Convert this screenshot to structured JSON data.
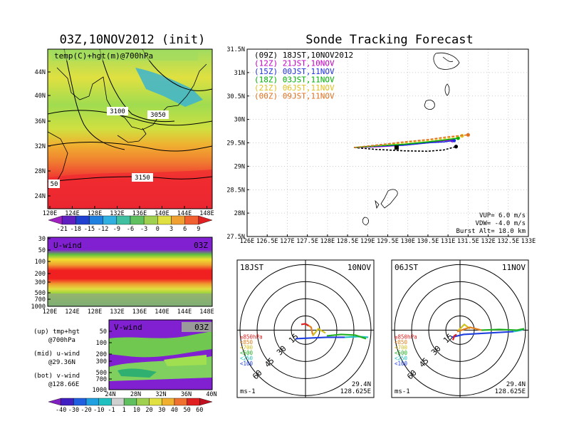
{
  "left_title": "03Z,10NOV2012 (init)",
  "right_title": "Sonde Tracking Forecast",
  "map_panel": {
    "label": "temp(C)+hgt(m)@700hPa",
    "yticks": [
      "44N",
      "40N",
      "36N",
      "32N",
      "28N",
      "24N"
    ],
    "xticks": [
      "120E",
      "124E",
      "128E",
      "132E",
      "136E",
      "140E",
      "144E",
      "148E"
    ],
    "contour_labels": [
      "3100",
      "3050",
      "3150",
      "50"
    ],
    "colorbar": [
      "-21",
      "-18",
      "-15",
      "-12",
      "-9",
      "-6",
      "-3",
      "0",
      "3",
      "6",
      "9"
    ]
  },
  "u_panel": {
    "label": "U-wind",
    "time": "03Z",
    "yticks": [
      "30",
      "50",
      "100",
      "200",
      "300",
      "500",
      "700",
      "1000"
    ],
    "xticks": [
      "120E",
      "124E",
      "128E",
      "132E",
      "136E",
      "140E",
      "144E",
      "148E"
    ]
  },
  "v_panel": {
    "label": "V-wind",
    "time": "03Z",
    "yticks": [
      "50",
      "100",
      "200",
      "300",
      "500",
      "700",
      "1000"
    ],
    "xticks": [
      "24N",
      "28N",
      "32N",
      "36N",
      "40N"
    ],
    "colorbar": [
      "-40",
      "-30",
      "-20",
      "-10",
      "-1",
      "1",
      "10",
      "20",
      "30",
      "40",
      "50",
      "60"
    ]
  },
  "side_notes": [
    [
      "(up) tmp+hgt",
      "@700hPa"
    ],
    [
      "(mid) u-wind",
      "@29.36N"
    ],
    [
      "(bot) v-wind",
      "@128.66E"
    ]
  ],
  "track_panel": {
    "legend": [
      {
        "text": "(09Z) 18JST,10NOV2012",
        "color": "#000000"
      },
      {
        "text": "(12Z) 21JST,10NOV",
        "color": "#c000c0"
      },
      {
        "text": "(15Z) 00JST,11NOV",
        "color": "#2030e0"
      },
      {
        "text": "(18Z) 03JST,11NOV",
        "color": "#00b000"
      },
      {
        "text": "(21Z) 06JST,11NOV",
        "color": "#e0c020"
      },
      {
        "text": "(00Z) 09JST,11NOV",
        "color": "#e07020"
      }
    ],
    "yticks": [
      "31.5N",
      "31N",
      "30.5N",
      "30N",
      "29.5N",
      "29N",
      "28.5N",
      "28N",
      "27.5N"
    ],
    "xticks": [
      "126E",
      "126.5E",
      "127E",
      "127.5E",
      "128E",
      "128.5E",
      "129E",
      "129.5E",
      "130E",
      "130.5E",
      "131E",
      "131.5E",
      "132E",
      "132.5E",
      "133E"
    ],
    "params": [
      "VUP= 6.0 m/s",
      "VDW= -4.0 m/s",
      "Burst Alt= 18.0 km"
    ]
  },
  "chart_data": {
    "type": "line",
    "title": "Sonde Tracking Forecast",
    "xlim": [
      126,
      133
    ],
    "ylim": [
      27.5,
      31.5
    ],
    "grid": true,
    "series": [
      {
        "name": "(09Z) 18JST,10NOV2012",
        "color": "#000000",
        "x": [
          128.66,
          129.2,
          129.9,
          130.5,
          130.9,
          131.2
        ],
        "y": [
          29.4,
          29.36,
          29.33,
          29.32,
          29.35,
          29.42
        ]
      },
      {
        "name": "(12Z) 21JST,10NOV",
        "color": "#c000c0",
        "x": [
          128.66,
          129.3,
          129.9,
          130.5,
          130.9,
          131.1
        ],
        "y": [
          29.4,
          29.42,
          29.45,
          29.5,
          29.55,
          29.55
        ]
      },
      {
        "name": "(15Z) 00JST,11NOV",
        "color": "#2030e0",
        "x": [
          128.66,
          129.3,
          129.9,
          130.5,
          130.9,
          131.15
        ],
        "y": [
          29.4,
          29.43,
          29.45,
          29.5,
          29.52,
          29.55
        ]
      },
      {
        "name": "(18Z) 03JST,11NOV",
        "color": "#00b000",
        "x": [
          128.66,
          129.3,
          129.9,
          130.5,
          130.9,
          131.25
        ],
        "y": [
          29.4,
          29.44,
          29.47,
          29.52,
          29.56,
          29.6
        ]
      },
      {
        "name": "(21Z) 06JST,11NOV",
        "color": "#e0c020",
        "x": [
          128.66,
          129.3,
          129.9,
          130.5,
          131.0,
          131.35
        ],
        "y": [
          29.4,
          29.45,
          29.5,
          29.55,
          29.6,
          29.65
        ]
      },
      {
        "name": "(00Z) 09JST,11NOV",
        "color": "#e07020",
        "x": [
          128.66,
          129.3,
          129.9,
          130.5,
          131.0,
          131.5
        ],
        "y": [
          29.4,
          29.46,
          29.52,
          29.57,
          29.63,
          29.67
        ]
      }
    ]
  },
  "hodo_left": {
    "time": "18JST",
    "date": "10NOV",
    "ring_labels": [
      "15",
      "30",
      "45",
      "60"
    ],
    "levels": [
      {
        "text": "≥850hPa",
        "color": "#e02020"
      },
      {
        "text": "<850",
        "color": "#e08020"
      },
      {
        "text": "<700",
        "color": "#d0c020"
      },
      {
        "text": "<500",
        "color": "#20b020"
      },
      {
        "text": "<250",
        "color": "#20c0c0"
      },
      {
        "text": "<100",
        "color": "#2040e0"
      }
    ],
    "unit": "ms-1",
    "lat": "29.4N",
    "lon": "128.625E"
  },
  "hodo_right": {
    "time": "06JST",
    "date": "11NOV",
    "ring_labels": [
      "15",
      "30",
      "45",
      "60"
    ],
    "levels": [
      {
        "text": "≥850hPa",
        "color": "#e02020"
      },
      {
        "text": "<850",
        "color": "#e08020"
      },
      {
        "text": "<700",
        "color": "#d0c020"
      },
      {
        "text": "<500",
        "color": "#20b020"
      },
      {
        "text": "<250",
        "color": "#20c0c0"
      },
      {
        "text": "<100",
        "color": "#2040e0"
      }
    ],
    "unit": "ms-1",
    "lat": "29.4N",
    "lon": "128.625E"
  }
}
